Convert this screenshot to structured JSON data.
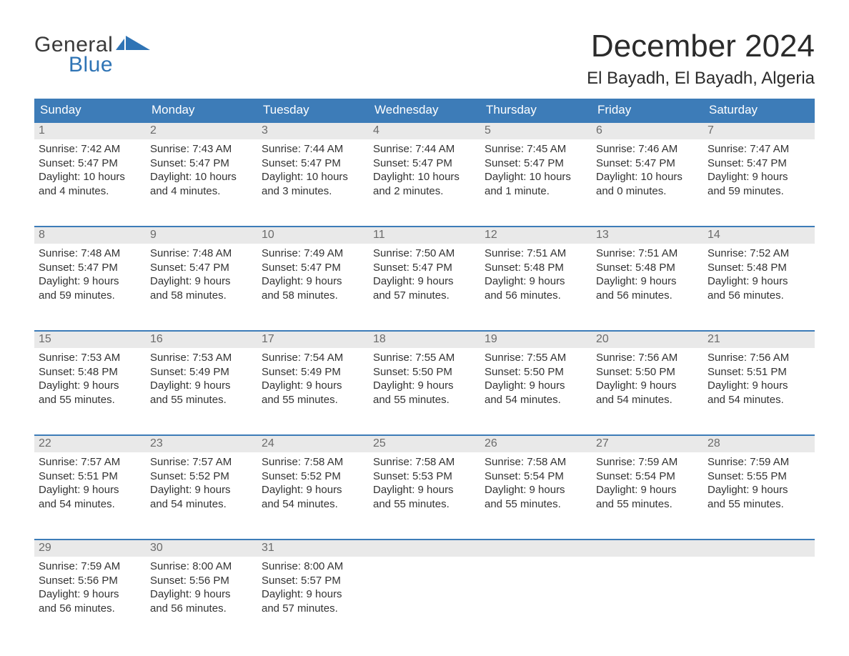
{
  "logo": {
    "text1": "General",
    "text2": "Blue",
    "flag_color": "#2f74b5"
  },
  "title": "December 2024",
  "location": "El Bayadh, El Bayadh, Algeria",
  "colors": {
    "header_bg": "#3d7cb8",
    "header_text": "#ffffff",
    "daynum_bg": "#e9e9e9",
    "daynum_text": "#6b6b6b",
    "body_text": "#333333",
    "week_border": "#3d7cb8",
    "page_bg": "#ffffff",
    "logo_blue": "#2f74b5",
    "logo_gray": "#3a3a3a"
  },
  "dow": [
    "Sunday",
    "Monday",
    "Tuesday",
    "Wednesday",
    "Thursday",
    "Friday",
    "Saturday"
  ],
  "weeks": [
    [
      {
        "n": "1",
        "sr": "Sunrise: 7:42 AM",
        "ss": "Sunset: 5:47 PM",
        "d1": "Daylight: 10 hours",
        "d2": "and 4 minutes."
      },
      {
        "n": "2",
        "sr": "Sunrise: 7:43 AM",
        "ss": "Sunset: 5:47 PM",
        "d1": "Daylight: 10 hours",
        "d2": "and 4 minutes."
      },
      {
        "n": "3",
        "sr": "Sunrise: 7:44 AM",
        "ss": "Sunset: 5:47 PM",
        "d1": "Daylight: 10 hours",
        "d2": "and 3 minutes."
      },
      {
        "n": "4",
        "sr": "Sunrise: 7:44 AM",
        "ss": "Sunset: 5:47 PM",
        "d1": "Daylight: 10 hours",
        "d2": "and 2 minutes."
      },
      {
        "n": "5",
        "sr": "Sunrise: 7:45 AM",
        "ss": "Sunset: 5:47 PM",
        "d1": "Daylight: 10 hours",
        "d2": "and 1 minute."
      },
      {
        "n": "6",
        "sr": "Sunrise: 7:46 AM",
        "ss": "Sunset: 5:47 PM",
        "d1": "Daylight: 10 hours",
        "d2": "and 0 minutes."
      },
      {
        "n": "7",
        "sr": "Sunrise: 7:47 AM",
        "ss": "Sunset: 5:47 PM",
        "d1": "Daylight: 9 hours",
        "d2": "and 59 minutes."
      }
    ],
    [
      {
        "n": "8",
        "sr": "Sunrise: 7:48 AM",
        "ss": "Sunset: 5:47 PM",
        "d1": "Daylight: 9 hours",
        "d2": "and 59 minutes."
      },
      {
        "n": "9",
        "sr": "Sunrise: 7:48 AM",
        "ss": "Sunset: 5:47 PM",
        "d1": "Daylight: 9 hours",
        "d2": "and 58 minutes."
      },
      {
        "n": "10",
        "sr": "Sunrise: 7:49 AM",
        "ss": "Sunset: 5:47 PM",
        "d1": "Daylight: 9 hours",
        "d2": "and 58 minutes."
      },
      {
        "n": "11",
        "sr": "Sunrise: 7:50 AM",
        "ss": "Sunset: 5:47 PM",
        "d1": "Daylight: 9 hours",
        "d2": "and 57 minutes."
      },
      {
        "n": "12",
        "sr": "Sunrise: 7:51 AM",
        "ss": "Sunset: 5:48 PM",
        "d1": "Daylight: 9 hours",
        "d2": "and 56 minutes."
      },
      {
        "n": "13",
        "sr": "Sunrise: 7:51 AM",
        "ss": "Sunset: 5:48 PM",
        "d1": "Daylight: 9 hours",
        "d2": "and 56 minutes."
      },
      {
        "n": "14",
        "sr": "Sunrise: 7:52 AM",
        "ss": "Sunset: 5:48 PM",
        "d1": "Daylight: 9 hours",
        "d2": "and 56 minutes."
      }
    ],
    [
      {
        "n": "15",
        "sr": "Sunrise: 7:53 AM",
        "ss": "Sunset: 5:48 PM",
        "d1": "Daylight: 9 hours",
        "d2": "and 55 minutes."
      },
      {
        "n": "16",
        "sr": "Sunrise: 7:53 AM",
        "ss": "Sunset: 5:49 PM",
        "d1": "Daylight: 9 hours",
        "d2": "and 55 minutes."
      },
      {
        "n": "17",
        "sr": "Sunrise: 7:54 AM",
        "ss": "Sunset: 5:49 PM",
        "d1": "Daylight: 9 hours",
        "d2": "and 55 minutes."
      },
      {
        "n": "18",
        "sr": "Sunrise: 7:55 AM",
        "ss": "Sunset: 5:50 PM",
        "d1": "Daylight: 9 hours",
        "d2": "and 55 minutes."
      },
      {
        "n": "19",
        "sr": "Sunrise: 7:55 AM",
        "ss": "Sunset: 5:50 PM",
        "d1": "Daylight: 9 hours",
        "d2": "and 54 minutes."
      },
      {
        "n": "20",
        "sr": "Sunrise: 7:56 AM",
        "ss": "Sunset: 5:50 PM",
        "d1": "Daylight: 9 hours",
        "d2": "and 54 minutes."
      },
      {
        "n": "21",
        "sr": "Sunrise: 7:56 AM",
        "ss": "Sunset: 5:51 PM",
        "d1": "Daylight: 9 hours",
        "d2": "and 54 minutes."
      }
    ],
    [
      {
        "n": "22",
        "sr": "Sunrise: 7:57 AM",
        "ss": "Sunset: 5:51 PM",
        "d1": "Daylight: 9 hours",
        "d2": "and 54 minutes."
      },
      {
        "n": "23",
        "sr": "Sunrise: 7:57 AM",
        "ss": "Sunset: 5:52 PM",
        "d1": "Daylight: 9 hours",
        "d2": "and 54 minutes."
      },
      {
        "n": "24",
        "sr": "Sunrise: 7:58 AM",
        "ss": "Sunset: 5:52 PM",
        "d1": "Daylight: 9 hours",
        "d2": "and 54 minutes."
      },
      {
        "n": "25",
        "sr": "Sunrise: 7:58 AM",
        "ss": "Sunset: 5:53 PM",
        "d1": "Daylight: 9 hours",
        "d2": "and 55 minutes."
      },
      {
        "n": "26",
        "sr": "Sunrise: 7:58 AM",
        "ss": "Sunset: 5:54 PM",
        "d1": "Daylight: 9 hours",
        "d2": "and 55 minutes."
      },
      {
        "n": "27",
        "sr": "Sunrise: 7:59 AM",
        "ss": "Sunset: 5:54 PM",
        "d1": "Daylight: 9 hours",
        "d2": "and 55 minutes."
      },
      {
        "n": "28",
        "sr": "Sunrise: 7:59 AM",
        "ss": "Sunset: 5:55 PM",
        "d1": "Daylight: 9 hours",
        "d2": "and 55 minutes."
      }
    ],
    [
      {
        "n": "29",
        "sr": "Sunrise: 7:59 AM",
        "ss": "Sunset: 5:56 PM",
        "d1": "Daylight: 9 hours",
        "d2": "and 56 minutes."
      },
      {
        "n": "30",
        "sr": "Sunrise: 8:00 AM",
        "ss": "Sunset: 5:56 PM",
        "d1": "Daylight: 9 hours",
        "d2": "and 56 minutes."
      },
      {
        "n": "31",
        "sr": "Sunrise: 8:00 AM",
        "ss": "Sunset: 5:57 PM",
        "d1": "Daylight: 9 hours",
        "d2": "and 57 minutes."
      },
      null,
      null,
      null,
      null
    ]
  ]
}
